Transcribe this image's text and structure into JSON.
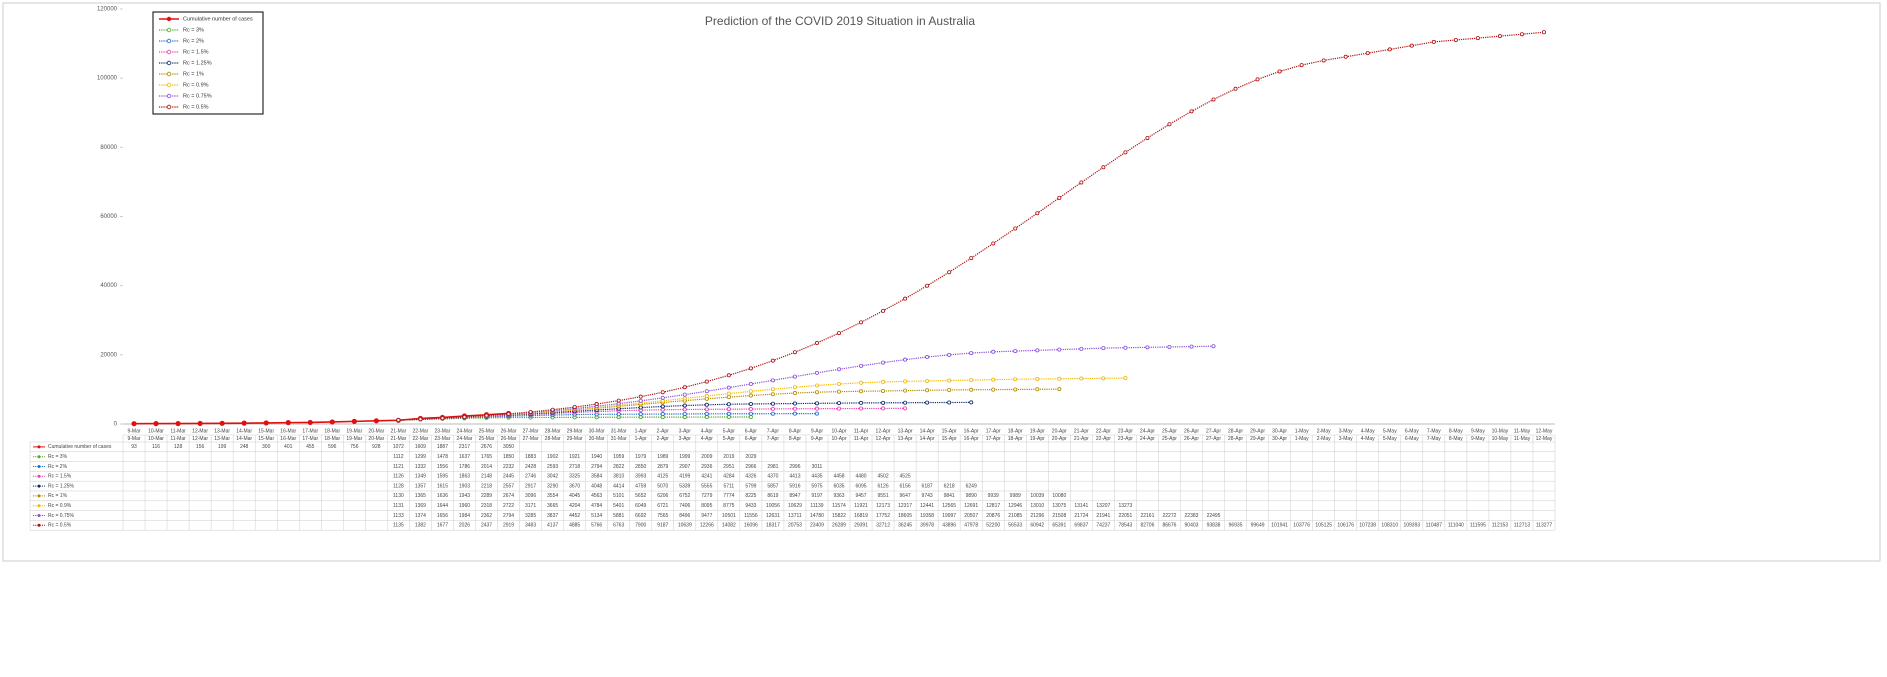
{
  "chart_data": {
    "type": "line",
    "title": "Prediction of the COVID 2019 Situation in Australia",
    "categories": [
      "9-Mar",
      "10-Mar",
      "11-Mar",
      "12-Mar",
      "13-Mar",
      "14-Mar",
      "15-Mar",
      "16-Mar",
      "17-Mar",
      "18-Mar",
      "19-Mar",
      "20-Mar",
      "21-Mar",
      "22-Mar",
      "23-Mar",
      "24-Mar",
      "25-Mar",
      "26-Mar",
      "27-Mar",
      "28-Mar",
      "29-Mar",
      "30-Mar",
      "31-Mar",
      "1-Apr",
      "2-Apr",
      "3-Apr",
      "4-Apr",
      "5-Apr",
      "6-Apr",
      "7-Apr",
      "8-Apr",
      "9-Apr",
      "10-Apr",
      "11-Apr",
      "12-Apr",
      "13-Apr",
      "14-Apr",
      "15-Apr",
      "16-Apr",
      "17-Apr",
      "18-Apr",
      "19-Apr",
      "20-Apr",
      "21-Apr",
      "22-Apr",
      "23-Apr",
      "24-Apr",
      "25-Apr",
      "26-Apr",
      "27-Apr",
      "28-Apr",
      "29-Apr",
      "30-Apr",
      "1-May",
      "2-May",
      "3-May",
      "4-May",
      "5-May",
      "6-May",
      "7-May",
      "8-May",
      "9-May",
      "10-May",
      "11-May",
      "12-May"
    ],
    "ylim": [
      0,
      120000
    ],
    "yticks": [
      0,
      20000,
      40000,
      60000,
      80000,
      100000,
      120000
    ],
    "grid": false,
    "legend": "top-left",
    "series": [
      {
        "name": "Cumulative number of cases",
        "color": "#e01010",
        "values": [
          93,
          116,
          128,
          156,
          199,
          248,
          300,
          401,
          455,
          596,
          756,
          928,
          1072,
          1609,
          1887,
          2317,
          2676,
          3050,
          null,
          null,
          null,
          null,
          null,
          null,
          null,
          null,
          null,
          null,
          null,
          null,
          null,
          null,
          null,
          null,
          null,
          null,
          null,
          null,
          null,
          null,
          null,
          null,
          null,
          null,
          null,
          null,
          null,
          null,
          null,
          null,
          null,
          null,
          null,
          null,
          null,
          null,
          null,
          null,
          null,
          null,
          null,
          null,
          null,
          null,
          null
        ]
      },
      {
        "name": "Rc = 3%",
        "color": "#4ea72e",
        "values": [
          null,
          null,
          null,
          null,
          null,
          null,
          null,
          null,
          null,
          null,
          null,
          null,
          1112,
          1299,
          1478,
          1637,
          1765,
          1850,
          1883,
          1902,
          1921,
          1940,
          1959,
          1979,
          1989,
          1999,
          2009,
          2019,
          2029,
          null,
          null,
          null,
          null,
          null,
          null,
          null,
          null,
          null,
          null,
          null,
          null,
          null,
          null,
          null,
          null,
          null,
          null,
          null,
          null,
          null,
          null,
          null,
          null,
          null,
          null,
          null,
          null,
          null,
          null,
          null,
          null,
          null,
          null,
          null,
          null
        ]
      },
      {
        "name": "Rc = 2%",
        "color": "#1f6fd1",
        "values": [
          null,
          null,
          null,
          null,
          null,
          null,
          null,
          null,
          null,
          null,
          null,
          null,
          1121,
          1332,
          1556,
          1786,
          2014,
          2232,
          2428,
          2593,
          2718,
          2794,
          2822,
          2850,
          2879,
          2907,
          2936,
          2951,
          2966,
          2981,
          2996,
          3011,
          null,
          null,
          null,
          null,
          null,
          null,
          null,
          null,
          null,
          null,
          null,
          null,
          null,
          null,
          null,
          null,
          null,
          null,
          null,
          null,
          null,
          null,
          null,
          null,
          null,
          null,
          null,
          null,
          null,
          null,
          null,
          null,
          null
        ]
      },
      {
        "name": "Rc = 1.5%",
        "color": "#f03cb4",
        "values": [
          null,
          null,
          null,
          null,
          null,
          null,
          null,
          null,
          null,
          null,
          null,
          null,
          1126,
          1349,
          1595,
          1863,
          2148,
          2445,
          2746,
          3042,
          3325,
          3584,
          3810,
          3993,
          4125,
          4199,
          4241,
          4284,
          4326,
          4370,
          4413,
          4435,
          4458,
          4480,
          4502,
          4525,
          null,
          null,
          null,
          null,
          null,
          null,
          null,
          null,
          null,
          null,
          null,
          null,
          null,
          null,
          null,
          null,
          null,
          null,
          null,
          null,
          null,
          null,
          null,
          null,
          null,
          null,
          null,
          null,
          null
        ]
      },
      {
        "name": "Rc = 1.25%",
        "color": "#0a2a6b",
        "values": [
          null,
          null,
          null,
          null,
          null,
          null,
          null,
          null,
          null,
          null,
          null,
          null,
          1128,
          1357,
          1615,
          1903,
          2218,
          2557,
          2917,
          3290,
          3670,
          4048,
          4414,
          4759,
          5070,
          5339,
          5555,
          5711,
          5799,
          5857,
          5916,
          5975,
          6035,
          6095,
          6126,
          6156,
          6187,
          6218,
          6249,
          null,
          null,
          null,
          null,
          null,
          null,
          null,
          null,
          null,
          null,
          null,
          null,
          null,
          null,
          null,
          null,
          null,
          null,
          null,
          null,
          null,
          null,
          null,
          null,
          null,
          null
        ]
      },
      {
        "name": "Rc = 1%",
        "color": "#b08a00",
        "values": [
          null,
          null,
          null,
          null,
          null,
          null,
          null,
          null,
          null,
          null,
          null,
          null,
          1130,
          1365,
          1636,
          1943,
          2289,
          2674,
          3096,
          3554,
          4045,
          4563,
          5101,
          5652,
          6206,
          6752,
          7279,
          7774,
          8225,
          8619,
          8947,
          9197,
          9363,
          9457,
          9551,
          9647,
          9743,
          9841,
          9890,
          9939,
          9989,
          10039,
          10080,
          null,
          null,
          null,
          null,
          null,
          null,
          null,
          null,
          null,
          null,
          null,
          null,
          null,
          null,
          null,
          null,
          null,
          null,
          null,
          null,
          null,
          null
        ]
      },
      {
        "name": "Rc = 0.9%",
        "color": "#f5b800",
        "values": [
          null,
          null,
          null,
          null,
          null,
          null,
          null,
          null,
          null,
          null,
          null,
          null,
          1131,
          1369,
          1644,
          1960,
          2318,
          2722,
          3171,
          3665,
          4204,
          4784,
          5401,
          6049,
          6721,
          7406,
          8095,
          8775,
          9433,
          10056,
          10629,
          11139,
          11574,
          11921,
          12173,
          12317,
          12441,
          12565,
          12691,
          12817,
          12946,
          13010,
          13075,
          13141,
          13207,
          13273,
          null,
          null,
          null,
          null,
          null,
          null,
          null,
          null,
          null,
          null,
          null,
          null,
          null,
          null,
          null,
          null,
          null,
          null,
          null
        ]
      },
      {
        "name": "Rc = 0.75%",
        "color": "#8a4fe0",
        "values": [
          null,
          null,
          null,
          null,
          null,
          null,
          null,
          null,
          null,
          null,
          null,
          null,
          1133,
          1374,
          1656,
          1984,
          2362,
          2794,
          3285,
          3837,
          4452,
          5134,
          5881,
          6692,
          7565,
          8496,
          9477,
          10501,
          11556,
          12631,
          13711,
          14780,
          15822,
          16819,
          17752,
          18605,
          19358,
          19997,
          20507,
          20876,
          21085,
          21296,
          21508,
          21724,
          21941,
          22051,
          22161,
          22272,
          22383,
          22495,
          null,
          null,
          null,
          null,
          null,
          null,
          null,
          null,
          null,
          null,
          null,
          null,
          null,
          null,
          null
        ]
      },
      {
        "name": "Rc = 0.5%",
        "color": "#b01010",
        "values": [
          null,
          null,
          null,
          null,
          null,
          null,
          null,
          null,
          null,
          null,
          null,
          null,
          1135,
          1382,
          1677,
          2026,
          2437,
          2919,
          3483,
          4137,
          4885,
          5766,
          6763,
          7900,
          9187,
          10639,
          12266,
          14082,
          16096,
          18317,
          20753,
          23409,
          26289,
          29391,
          32712,
          36245,
          39978,
          43896,
          47978,
          52200,
          56533,
          60942,
          65391,
          69837,
          74237,
          78543,
          82706,
          86676,
          90403,
          93838,
          96935,
          99649,
          101941,
          103776,
          105125,
          106176,
          107238,
          108310,
          109393,
          110487,
          111040,
          111595,
          112153,
          112713,
          113277
        ]
      }
    ]
  }
}
